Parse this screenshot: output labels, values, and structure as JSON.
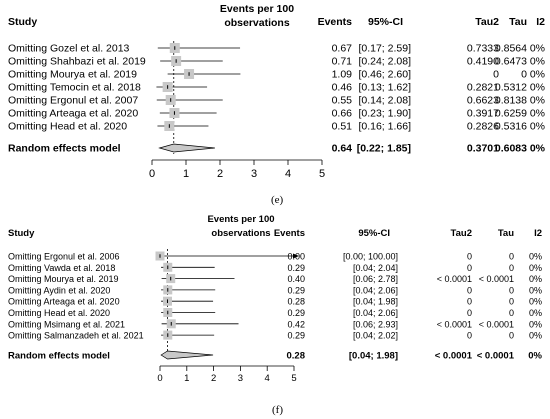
{
  "captions": [
    "(e)",
    "(f)"
  ],
  "chart_data": [
    {
      "type": "forest",
      "title": "Events per 100 observations",
      "headers": {
        "study": "Study",
        "events": "Events",
        "ci": "95%-CI",
        "tau2": "Tau2",
        "tau": "Tau",
        "i2": "I2"
      },
      "xlim": [
        0,
        5
      ],
      "xticks": [
        "0",
        "1",
        "2",
        "3",
        "4",
        "5"
      ],
      "null_line": 0.64,
      "rows": [
        {
          "study": "Omitting Gozel et al. 2013",
          "events": 0.67,
          "lo": 0.17,
          "hi": 2.59,
          "events_txt": "0.67",
          "ci_txt": "[0.17; 2.59]",
          "tau2": "0.7333",
          "tau": "0.8564",
          "i2": "0%"
        },
        {
          "study": "Omitting Shahbazi et al. 2019",
          "events": 0.71,
          "lo": 0.24,
          "hi": 2.08,
          "events_txt": "0.71",
          "ci_txt": "[0.24; 2.08]",
          "tau2": "0.4190",
          "tau": "0.6473",
          "i2": "0%"
        },
        {
          "study": "Omitting Mourya et al. 2019",
          "events": 1.09,
          "lo": 0.46,
          "hi": 2.6,
          "events_txt": "1.09",
          "ci_txt": "[0.46; 2.60]",
          "tau2": "0",
          "tau": "0",
          "i2": "0%"
        },
        {
          "study": "Omitting Temocin et al. 2018",
          "events": 0.46,
          "lo": 0.13,
          "hi": 1.62,
          "events_txt": "0.46",
          "ci_txt": "[0.13; 1.62]",
          "tau2": "0.2821",
          "tau": "0.5312",
          "i2": "0%"
        },
        {
          "study": "Omitting Ergonul et al. 2007",
          "events": 0.55,
          "lo": 0.14,
          "hi": 2.08,
          "events_txt": "0.55",
          "ci_txt": "[0.14; 2.08]",
          "tau2": "0.6623",
          "tau": "0.8138",
          "i2": "0%"
        },
        {
          "study": "Omitting Arteaga et al. 2020",
          "events": 0.66,
          "lo": 0.23,
          "hi": 1.9,
          "events_txt": "0.66",
          "ci_txt": "[0.23; 1.90]",
          "tau2": "0.3917",
          "tau": "0.6259",
          "i2": "0%"
        },
        {
          "study": "Omitting Head et al. 2020",
          "events": 0.51,
          "lo": 0.16,
          "hi": 1.66,
          "events_txt": "0.51",
          "ci_txt": "[0.16; 1.66]",
          "tau2": "0.2826",
          "tau": "0.5316",
          "i2": "0%"
        }
      ],
      "pooled": {
        "study": "Random effects model",
        "events": 0.64,
        "lo": 0.22,
        "hi": 1.85,
        "events_txt": "0.64",
        "ci_txt": "[0.22; 1.85]",
        "tau2": "0.3701",
        "tau": "0.6083",
        "i2": "0%"
      }
    },
    {
      "type": "forest",
      "title": "Events per 100 observations",
      "headers": {
        "study": "Study",
        "events": "Events",
        "ci": "95%-CI",
        "tau2": "Tau2",
        "tau": "Tau",
        "i2": "I2"
      },
      "xlim": [
        0,
        5
      ],
      "xticks": [
        "0",
        "1",
        "2",
        "3",
        "4",
        "5"
      ],
      "null_line": 0.28,
      "rows": [
        {
          "study": "Omitting Ergonul et al. 2006",
          "events": 0.0,
          "lo": 0.0,
          "hi": 100.0,
          "events_txt": "0.00",
          "ci_txt": "[0.00; 100.00]",
          "tau2": "0",
          "tau": "0",
          "i2": "0%"
        },
        {
          "study": "Omitting Vawda et al. 2018",
          "events": 0.29,
          "lo": 0.04,
          "hi": 2.04,
          "events_txt": "0.29",
          "ci_txt": "[0.04;   2.04]",
          "tau2": "0",
          "tau": "0",
          "i2": "0%"
        },
        {
          "study": "Omitting Mourya et al. 2019",
          "events": 0.4,
          "lo": 0.06,
          "hi": 2.78,
          "events_txt": "0.40",
          "ci_txt": "[0.06;   2.78]",
          "tau2": "< 0.0001",
          "tau": "< 0.0001",
          "i2": "0%"
        },
        {
          "study": "Omitting Aydin et al. 2020",
          "events": 0.29,
          "lo": 0.04,
          "hi": 2.06,
          "events_txt": "0.29",
          "ci_txt": "[0.04;   2.06]",
          "tau2": "0",
          "tau": "0",
          "i2": "0%"
        },
        {
          "study": "Omitting Arteaga et al. 2020",
          "events": 0.28,
          "lo": 0.04,
          "hi": 1.98,
          "events_txt": "0.28",
          "ci_txt": "[0.04;   1.98]",
          "tau2": "0",
          "tau": "0",
          "i2": "0%"
        },
        {
          "study": "Omitting Head et al. 2020",
          "events": 0.29,
          "lo": 0.04,
          "hi": 2.06,
          "events_txt": "0.29",
          "ci_txt": "[0.04;   2.06]",
          "tau2": "0",
          "tau": "0",
          "i2": "0%"
        },
        {
          "study": "Omitting Msimang et al. 2021",
          "events": 0.42,
          "lo": 0.06,
          "hi": 2.93,
          "events_txt": "0.42",
          "ci_txt": "[0.06;   2.93]",
          "tau2": "< 0.0001",
          "tau": "< 0.0001",
          "i2": "0%"
        },
        {
          "study": "Omitting Salmanzadeh et al. 2021",
          "events": 0.29,
          "lo": 0.04,
          "hi": 2.02,
          "events_txt": "0.29",
          "ci_txt": "[0.04;   2.02]",
          "tau2": "0",
          "tau": "0",
          "i2": "0%"
        }
      ],
      "pooled": {
        "study": "Random effects model",
        "events": 0.28,
        "lo": 0.04,
        "hi": 1.98,
        "events_txt": "0.28",
        "ci_txt": "[0.04;   1.98]",
        "tau2": "< 0.0001",
        "tau": "< 0.0001",
        "i2": "0%"
      }
    }
  ]
}
